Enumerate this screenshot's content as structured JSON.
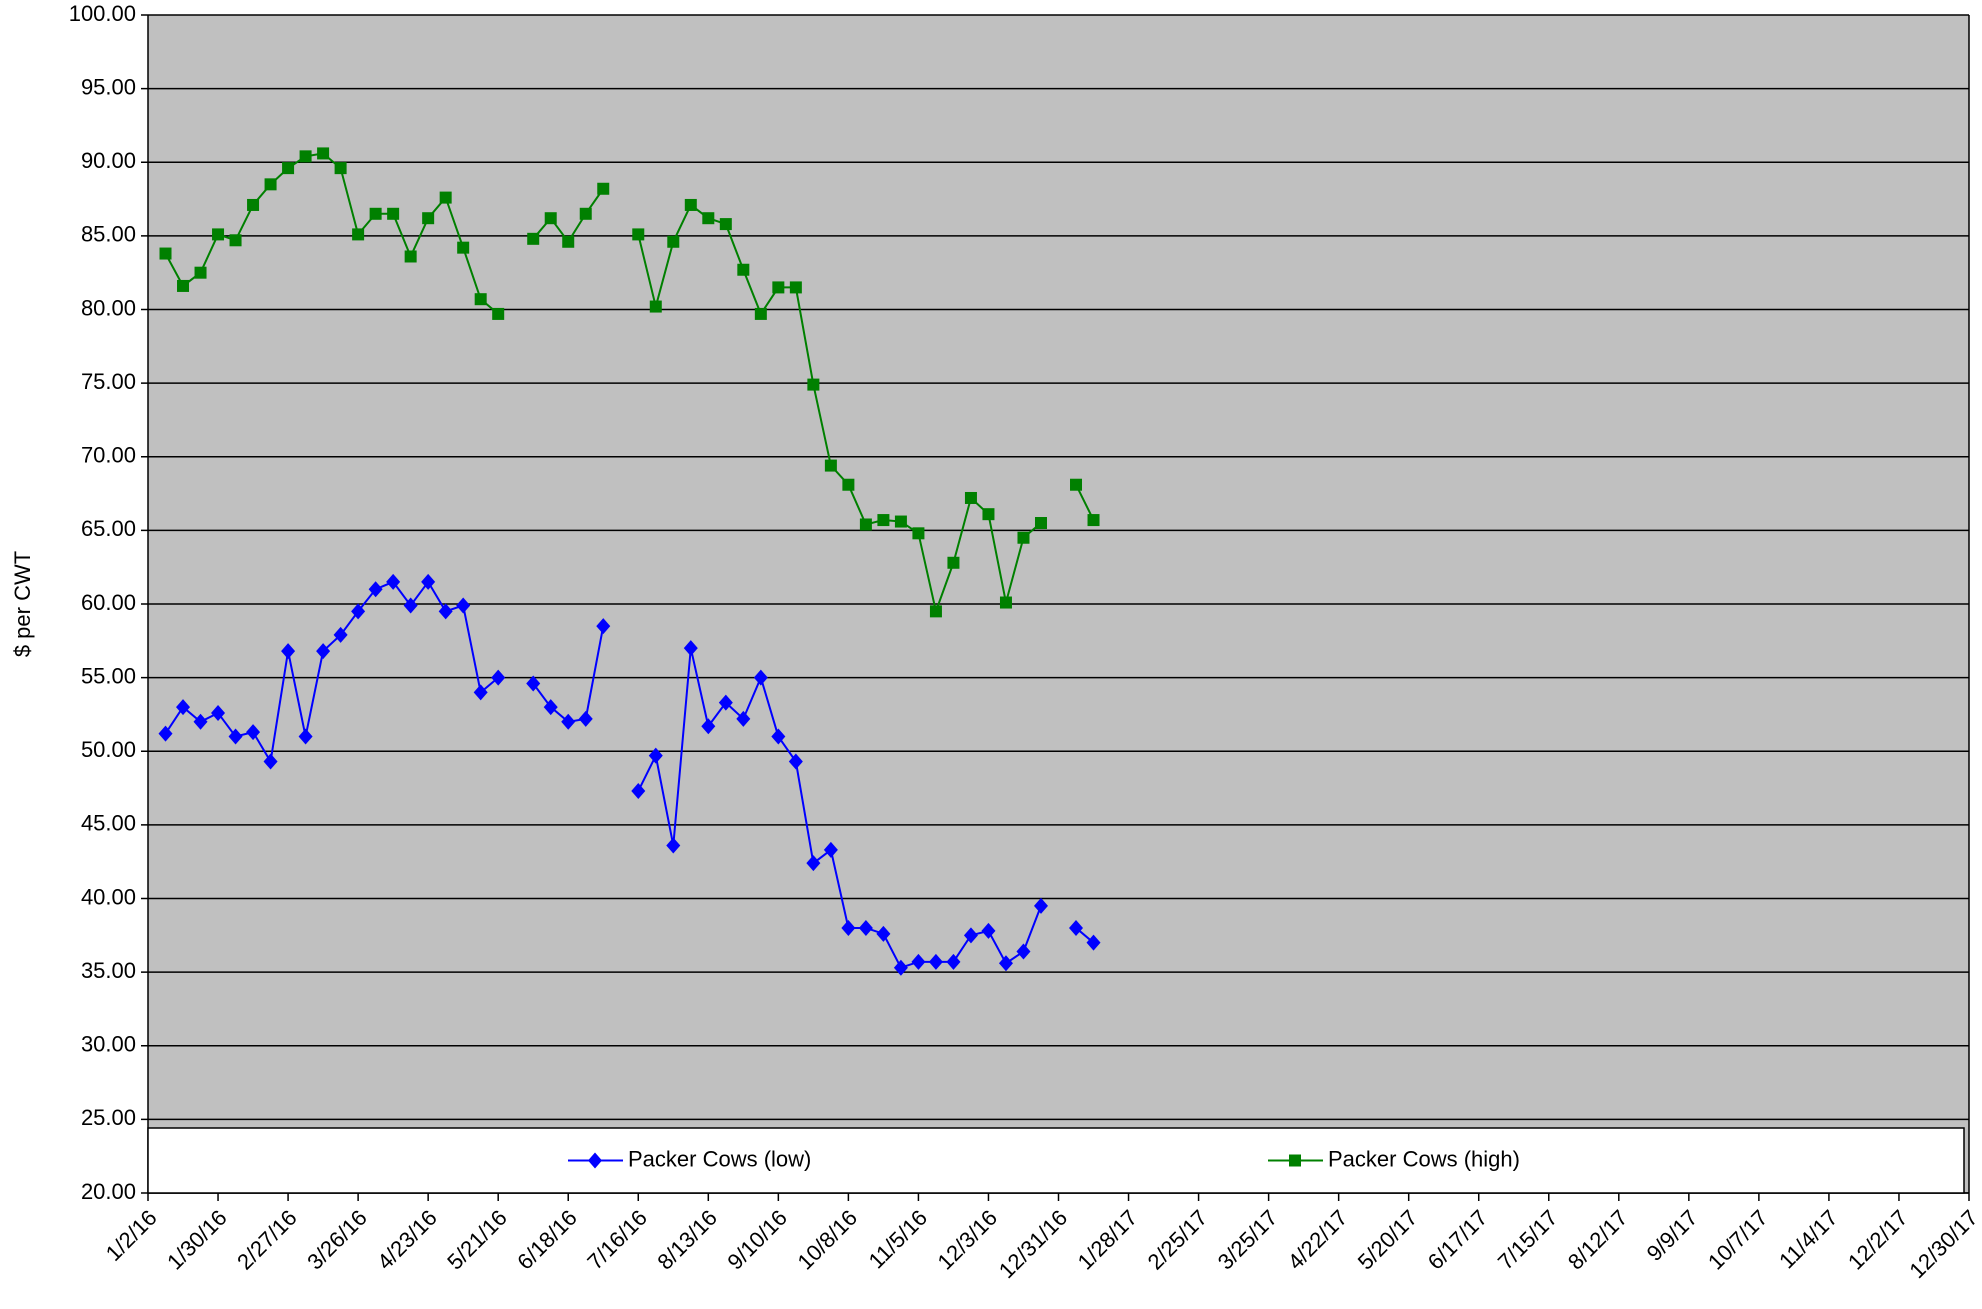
{
  "chart_data": {
    "type": "line",
    "y_label": "$ per CWT",
    "x": [
      "1/9/16",
      "1/16/16",
      "1/23/16",
      "1/30/16",
      "2/6/16",
      "2/13/16",
      "2/20/16",
      "2/27/16",
      "3/5/16",
      "3/12/16",
      "3/19/16",
      "3/26/16",
      "4/2/16",
      "4/9/16",
      "4/16/16",
      "4/23/16",
      "4/30/16",
      "5/7/16",
      "5/14/16",
      "5/21/16",
      "5/28/16",
      "6/4/16",
      "6/11/16",
      "6/18/16",
      "6/25/16",
      "7/2/16",
      "7/9/16",
      "7/16/16",
      "7/23/16",
      "7/30/16",
      "8/6/16",
      "8/13/16",
      "8/20/16",
      "8/27/16",
      "9/3/16",
      "9/10/16",
      "9/17/16",
      "9/24/16",
      "10/1/16",
      "10/8/16",
      "10/15/16",
      "10/22/16",
      "10/29/16",
      "11/5/16",
      "11/12/16",
      "11/19/16",
      "11/26/16",
      "12/3/16",
      "12/10/16",
      "12/17/16",
      "12/24/16",
      "12/31/16",
      "1/7/17",
      "1/14/17"
    ],
    "series": [
      {
        "name": "Packer Cows (low)",
        "color": "#0000ff",
        "marker": "diamond",
        "values": [
          51.2,
          53.0,
          52.0,
          52.6,
          51.0,
          51.3,
          49.3,
          56.8,
          51.0,
          56.8,
          57.9,
          59.5,
          61.0,
          61.5,
          59.9,
          61.5,
          59.5,
          59.9,
          54.0,
          55.0,
          null,
          54.6,
          53.0,
          52.0,
          52.2,
          58.5,
          null,
          47.3,
          49.7,
          43.6,
          57.0,
          51.7,
          53.3,
          52.2,
          55.0,
          51.0,
          49.3,
          42.4,
          43.3,
          38.0,
          38.0,
          37.6,
          35.3,
          35.7,
          35.7,
          35.7,
          37.5,
          37.8,
          35.6,
          36.4,
          39.5,
          null,
          38.0,
          37.0
        ]
      },
      {
        "name": "Packer Cows (high)",
        "color": "#008000",
        "marker": "square",
        "values": [
          83.8,
          81.6,
          82.5,
          85.1,
          84.7,
          87.1,
          88.5,
          89.6,
          90.4,
          90.6,
          89.6,
          85.1,
          86.5,
          86.5,
          83.6,
          86.2,
          87.6,
          84.2,
          80.7,
          79.7,
          null,
          84.8,
          86.2,
          84.6,
          86.5,
          88.2,
          null,
          85.1,
          80.2,
          84.6,
          87.1,
          86.2,
          85.8,
          82.7,
          79.7,
          81.5,
          81.5,
          74.9,
          69.4,
          68.1,
          65.4,
          65.7,
          65.6,
          64.8,
          59.5,
          62.8,
          67.2,
          66.1,
          60.1,
          64.5,
          65.5,
          null,
          68.1,
          65.7
        ]
      }
    ],
    "xlim": [
      "1/2/16",
      "12/30/17"
    ],
    "xticks": [
      "1/2/16",
      "1/30/16",
      "2/27/16",
      "3/26/16",
      "4/23/16",
      "5/21/16",
      "6/18/16",
      "7/16/16",
      "8/13/16",
      "9/10/16",
      "10/8/16",
      "11/5/16",
      "12/3/16",
      "12/31/16",
      "1/28/17",
      "2/25/17",
      "3/25/17",
      "4/22/17",
      "5/20/17",
      "6/17/17",
      "7/15/17",
      "8/12/17",
      "9/9/17",
      "10/7/17",
      "11/4/17",
      "12/2/17",
      "12/30/17"
    ],
    "ylim": [
      20,
      100
    ],
    "yticks": [
      {
        "value": 20,
        "label": "20.00"
      },
      {
        "value": 25,
        "label": "25.00"
      },
      {
        "value": 30,
        "label": "30.00"
      },
      {
        "value": 35,
        "label": "35.00"
      },
      {
        "value": 40,
        "label": "40.00"
      },
      {
        "value": 45,
        "label": "45.00"
      },
      {
        "value": 50,
        "label": "50.00"
      },
      {
        "value": 55,
        "label": "55.00"
      },
      {
        "value": 60,
        "label": "60.00"
      },
      {
        "value": 65,
        "label": "65.00"
      },
      {
        "value": 70,
        "label": "70.00"
      },
      {
        "value": 75,
        "label": "75.00"
      },
      {
        "value": 80,
        "label": "80.00"
      },
      {
        "value": 85,
        "label": "85.00"
      },
      {
        "value": 90,
        "label": "90.00"
      },
      {
        "value": 95,
        "label": "95.00"
      },
      {
        "value": 100,
        "label": "100.00"
      }
    ],
    "grid": true,
    "legend": "bottom",
    "background": "#c0c0c0"
  }
}
